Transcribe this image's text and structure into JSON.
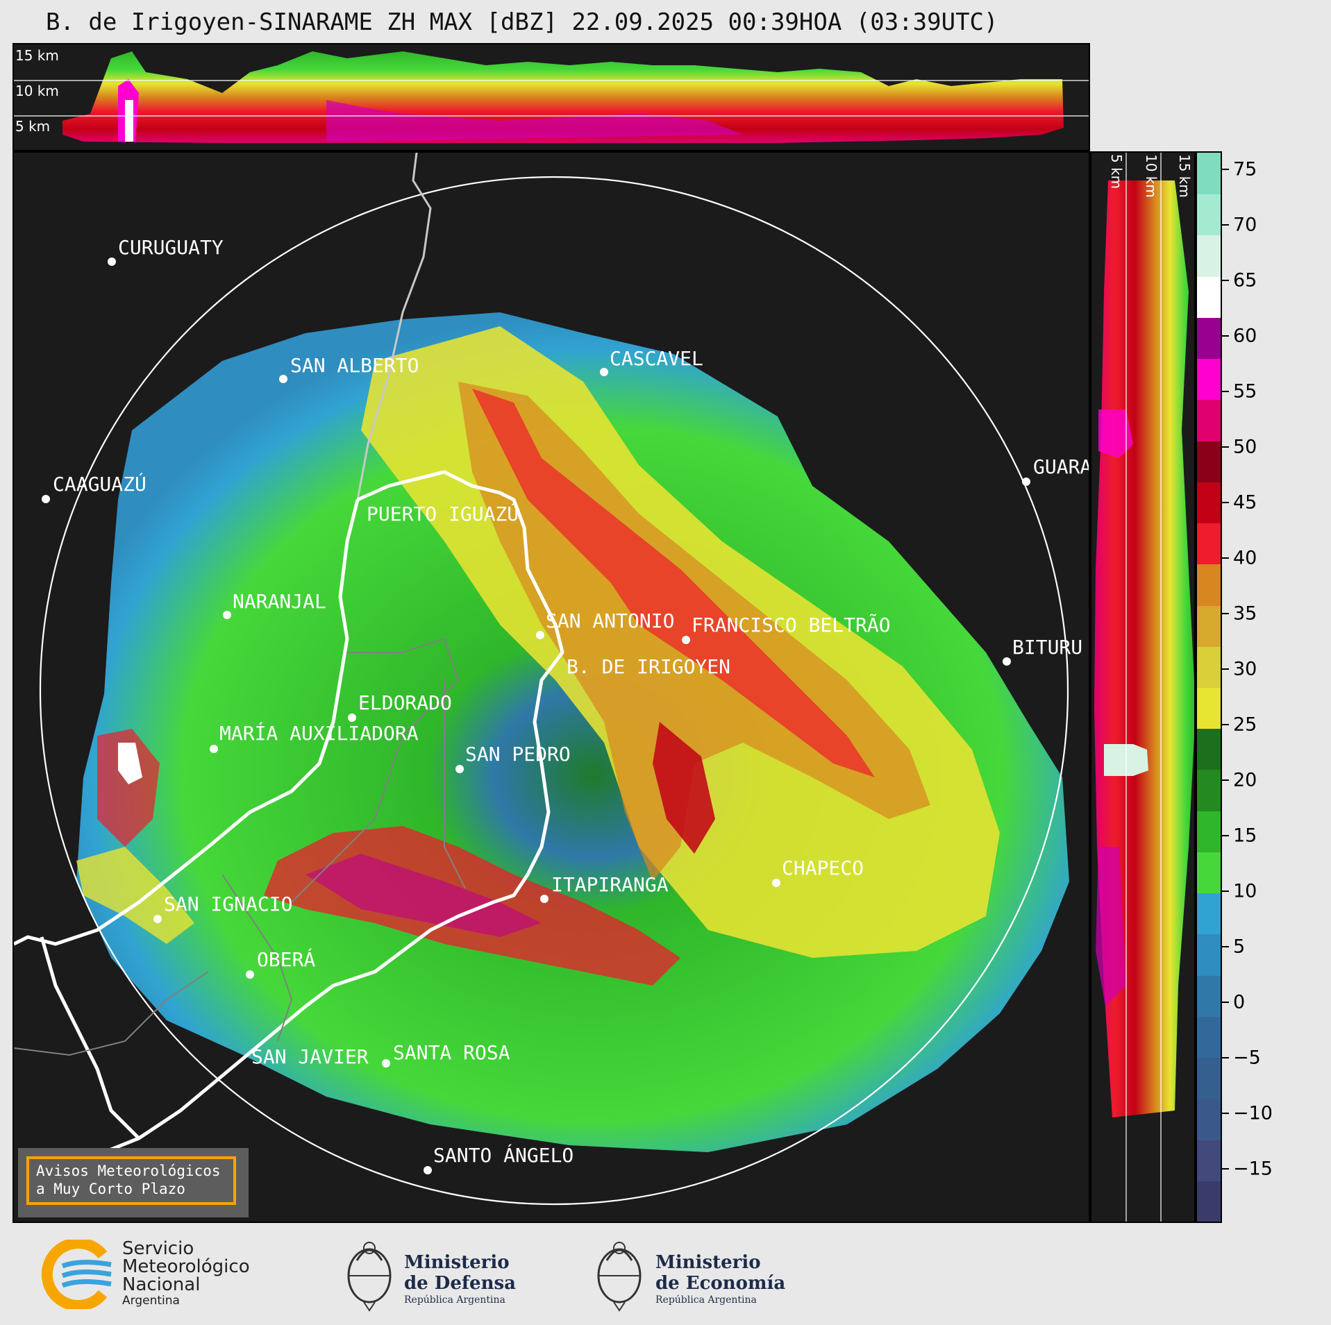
{
  "title": "B. de Irigoyen-SINARAME ZH MAX [dBZ] 22.09.2025 00:39HOA (03:39UTC)",
  "top_panel": {
    "altitude_labels": [
      "15 km",
      "10 km",
      "5 km"
    ]
  },
  "side_panel": {
    "altitude_labels": [
      "5 km",
      "10 km",
      "15 km"
    ]
  },
  "colorbar": {
    "unit": "dBZ",
    "tick_labels": [
      "75",
      "70",
      "65",
      "60",
      "55",
      "50",
      "45",
      "40",
      "35",
      "30",
      "25",
      "20",
      "15",
      "10",
      "5",
      "0",
      "−5",
      "−10",
      "−15"
    ],
    "colors": [
      "#3b3b6b",
      "#414a7a",
      "#3a5889",
      "#355f8f",
      "#32699a",
      "#2f78a8",
      "#2f8dbf",
      "#31a3d2",
      "#46d83a",
      "#2fb62a",
      "#238a22",
      "#1d6f1b",
      "#e8e432",
      "#d8d036",
      "#d6a82c",
      "#d8861f",
      "#ee1c2c",
      "#c20016",
      "#8b0018",
      "#e0006e",
      "#ff00d0",
      "#9a0090",
      "#ffffff",
      "#d8f3e4",
      "#a4ead0",
      "#7fdcbf"
    ]
  },
  "cities": [
    {
      "name": "CURUGUATY"
    },
    {
      "name": "SAN ALBERTO"
    },
    {
      "name": "CAAGUAZÚ"
    },
    {
      "name": "CASCAVEL"
    },
    {
      "name": "GUARA"
    },
    {
      "name": "PUERTO IGUAZÚ"
    },
    {
      "name": "NARANJAL"
    },
    {
      "name": "SAN ANTONIO"
    },
    {
      "name": "FRANCISCO BELTRÃO"
    },
    {
      "name": "BITURU"
    },
    {
      "name": "B. DE IRIGOYEN"
    },
    {
      "name": "ELDORADO"
    },
    {
      "name": "MARÍA AUXILIADORA"
    },
    {
      "name": "SAN PEDRO"
    },
    {
      "name": "CHAPECO"
    },
    {
      "name": "ITAPIRANGA"
    },
    {
      "name": "SAN IGNACIO"
    },
    {
      "name": "OBERÁ"
    },
    {
      "name": "SAN JAVIER"
    },
    {
      "name": "SANTA ROSA"
    },
    {
      "name": "SANTO ÁNGELO"
    }
  ],
  "warning_box": {
    "line1": "Avisos Meteorológicos",
    "line2": "a Muy Corto Plazo"
  },
  "logos": {
    "smn": {
      "line1": "Servicio",
      "line2": "Meteorológico",
      "line3": "Nacional",
      "line4": "Argentina"
    },
    "defensa": {
      "line1": "Ministerio",
      "line2": "de Defensa",
      "line3": "República Argentina"
    },
    "economia": {
      "line1": "Ministerio",
      "line2": "de Economía",
      "line3": "República Argentina"
    }
  }
}
